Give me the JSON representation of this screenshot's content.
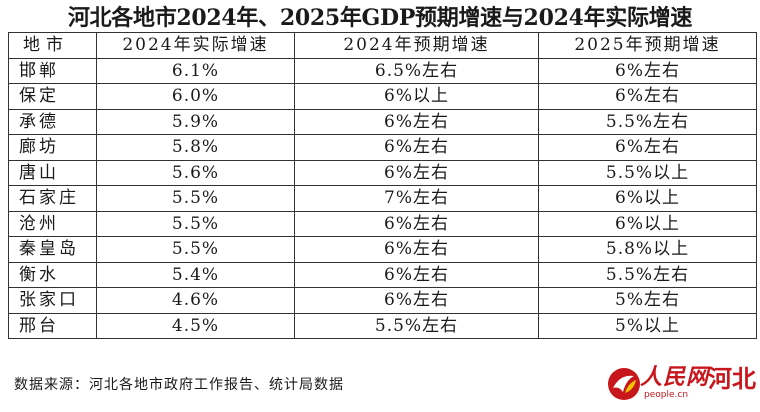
{
  "title": "河北各地市2024年、2025年GDP预期增速与2024年实际增速",
  "table": {
    "headers": [
      "地市",
      "2024年实际增速",
      "2024年预期增速",
      "2025年预期增速"
    ],
    "rows": [
      {
        "city": "邯郸",
        "actual_2024": "6.1%",
        "expected_2024": "6.5%左右",
        "expected_2025": "6%左右"
      },
      {
        "city": "保定",
        "actual_2024": "6.0%",
        "expected_2024": "6%以上",
        "expected_2025": "6%左右"
      },
      {
        "city": "承德",
        "actual_2024": "5.9%",
        "expected_2024": "6%左右",
        "expected_2025": "5.5%左右"
      },
      {
        "city": "廊坊",
        "actual_2024": "5.8%",
        "expected_2024": "6%左右",
        "expected_2025": "6%左右"
      },
      {
        "city": "唐山",
        "actual_2024": "5.6%",
        "expected_2024": "6%左右",
        "expected_2025": "5.5%以上"
      },
      {
        "city": "石家庄",
        "actual_2024": "5.5%",
        "expected_2024": "7%左右",
        "expected_2025": "6%以上"
      },
      {
        "city": "沧州",
        "actual_2024": "5.5%",
        "expected_2024": "6%左右",
        "expected_2025": "6%以上"
      },
      {
        "city": "秦皇岛",
        "actual_2024": "5.5%",
        "expected_2024": "6%左右",
        "expected_2025": "5.8%以上"
      },
      {
        "city": "衡水",
        "actual_2024": "5.4%",
        "expected_2024": "6%左右",
        "expected_2025": "5.5%左右"
      },
      {
        "city": "张家口",
        "actual_2024": "4.6%",
        "expected_2024": "6%左右",
        "expected_2025": "5%左右"
      },
      {
        "city": "邢台",
        "actual_2024": "4.5%",
        "expected_2024": "5.5%左右",
        "expected_2025": "5%以上"
      }
    ]
  },
  "source": "数据来源：河北各地市政府工作报告、统计局数据",
  "logo": {
    "name": "人民网",
    "url": "people.cn",
    "region": "河北",
    "icon": "people-daily-logo-icon",
    "brand_color": "#c8161d"
  }
}
